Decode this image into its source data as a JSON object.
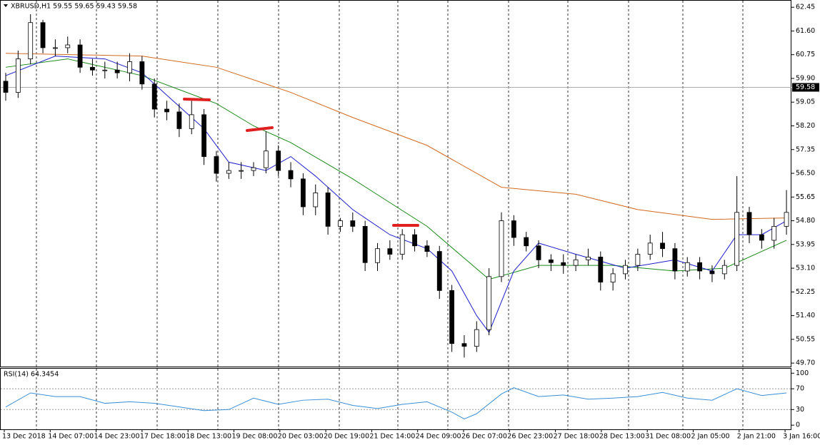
{
  "chart_data": [
    {
      "type": "candlestick",
      "title": "XBRUSD,H1  59.55 59.65 59.43 59.58",
      "open": [
        59.8,
        59.4,
        60.6,
        61.9,
        61.0,
        61.0,
        61.1,
        60.3,
        60.2,
        60.2,
        60.1,
        60.5,
        59.7,
        58.8,
        58.7,
        58.1,
        58.6,
        57.1,
        56.5,
        56.6,
        56.6,
        56.7,
        57.3,
        56.6,
        56.3,
        55.3,
        55.8,
        54.6,
        54.8,
        54.6,
        53.3,
        53.8,
        53.6,
        54.3,
        53.9,
        53.7,
        52.3,
        50.4,
        50.3,
        50.9,
        52.8,
        54.8,
        54.2,
        53.9,
        53.4,
        53.3,
        53.2,
        53.4,
        53.5,
        52.6,
        52.9,
        53.2,
        53.6,
        54.0,
        53.8,
        53.0,
        53.3,
        53.0,
        52.9,
        53.2,
        55.1,
        54.3,
        54.1,
        54.6
      ],
      "high": [
        60.1,
        60.9,
        62.2,
        62.0,
        61.3,
        61.4,
        61.3,
        60.6,
        60.5,
        60.5,
        60.8,
        60.7,
        59.9,
        59.1,
        59.0,
        59.1,
        58.8,
        57.3,
        56.9,
        56.9,
        56.9,
        58.0,
        57.5,
        56.9,
        56.5,
        56.1,
        56.0,
        54.9,
        55.1,
        54.8,
        54.0,
        54.1,
        54.5,
        54.5,
        54.1,
        53.9,
        52.5,
        50.7,
        51.2,
        53.1,
        55.1,
        55.0,
        54.4,
        54.1,
        53.6,
        53.6,
        53.6,
        53.8,
        53.7,
        53.1,
        53.4,
        53.8,
        54.3,
        54.4,
        54.0,
        53.5,
        53.5,
        53.2,
        53.4,
        56.4,
        55.3,
        54.5,
        54.9,
        55.9
      ],
      "low": [
        59.1,
        59.2,
        60.4,
        60.8,
        60.7,
        60.8,
        60.1,
        60.0,
        59.9,
        59.9,
        59.8,
        59.5,
        58.5,
        58.4,
        57.8,
        57.9,
        56.8,
        56.2,
        56.3,
        56.3,
        56.4,
        56.5,
        56.4,
        56.0,
        55.0,
        55.0,
        54.3,
        54.4,
        54.4,
        53.0,
        53.0,
        53.4,
        53.4,
        53.7,
        53.5,
        52.0,
        50.1,
        49.9,
        50.1,
        50.7,
        52.6,
        53.9,
        53.7,
        53.1,
        53.0,
        52.9,
        53.0,
        53.2,
        52.3,
        52.3,
        52.7,
        53.0,
        53.4,
        53.5,
        52.7,
        52.8,
        52.7,
        52.6,
        52.7,
        53.0,
        54.0,
        53.8,
        53.8,
        54.3
      ],
      "close": [
        59.4,
        60.6,
        61.9,
        61.0,
        61.0,
        61.1,
        60.3,
        60.2,
        60.2,
        60.1,
        60.5,
        59.7,
        58.8,
        58.7,
        58.1,
        58.6,
        57.1,
        56.5,
        56.6,
        56.6,
        56.7,
        57.3,
        56.6,
        56.3,
        55.3,
        55.8,
        54.6,
        54.8,
        54.6,
        53.3,
        53.8,
        53.6,
        54.3,
        53.9,
        53.7,
        52.3,
        50.4,
        50.3,
        50.9,
        52.8,
        54.8,
        54.2,
        53.9,
        53.4,
        53.3,
        53.2,
        53.4,
        53.5,
        52.6,
        52.9,
        53.2,
        53.6,
        54.0,
        53.8,
        53.0,
        53.3,
        53.0,
        52.9,
        53.2,
        55.1,
        54.3,
        54.1,
        54.6,
        55.1
      ],
      "series": [
        {
          "color": "#d2691e",
          "x": [
            0,
            11,
            17,
            23,
            28,
            34,
            40,
            46,
            51,
            57,
            63
          ],
          "values": [
            60.8,
            60.7,
            60.3,
            59.4,
            58.5,
            57.5,
            56.0,
            55.75,
            55.2,
            54.85,
            54.9
          ]
        },
        {
          "color": "#1a8a1a",
          "x": [
            0,
            5,
            11,
            17,
            20,
            23,
            28,
            34,
            39,
            43,
            49,
            54,
            58,
            63
          ],
          "values": [
            60.3,
            60.6,
            60.0,
            59.0,
            58.2,
            57.6,
            56.3,
            54.6,
            52.7,
            53.2,
            53.2,
            53.0,
            53.1,
            54.1
          ]
        },
        {
          "color": "#1c1ccc",
          "x": [
            0,
            4,
            8,
            11,
            13,
            16,
            18,
            21,
            23,
            25,
            28,
            31,
            34,
            36,
            38,
            39,
            41,
            43,
            46,
            50,
            54,
            57,
            59,
            61,
            63
          ],
          "values": [
            60.0,
            60.7,
            60.6,
            60.1,
            59.3,
            58.1,
            56.9,
            56.6,
            57.1,
            56.4,
            55.2,
            54.3,
            53.8,
            53.0,
            51.4,
            50.8,
            53.0,
            54.0,
            53.6,
            53.1,
            53.4,
            53.0,
            54.3,
            54.3,
            54.8
          ]
        }
      ],
      "current_price": {
        "value": 59.58,
        "label": "59.58"
      },
      "ylim": [
        49.55,
        62.71
      ],
      "yticks": [
        62.45,
        {
          "value": 61.6,
          "label": "61.60"
        },
        60.75,
        {
          "value": 59.9,
          "label": "59.90"
        },
        59.05,
        {
          "value": 58.2,
          "label": "58.20"
        },
        57.35,
        {
          "value": 56.5,
          "label": "56.50"
        },
        55.65,
        {
          "value": 54.8,
          "label": "54.80"
        },
        53.95,
        {
          "value": 53.1,
          "label": "53.10"
        },
        52.25,
        {
          "value": 51.4,
          "label": "51.40"
        },
        50.55,
        {
          "value": 49.7,
          "label": "49.70"
        }
      ],
      "x_labels": [
        "13 Dec 2018",
        "14 Dec 07:00",
        "14 Dec 23:00",
        "17 Dec 18:00",
        "18 Dec 13:00",
        "19 Dec 08:00",
        "20 Dec 03:00",
        "20 Dec 19:00",
        "21 Dec 14:00",
        "24 Dec 09:00",
        "26 Dec 07:00",
        "26 Dec 23:00",
        "27 Dec 18:00",
        "28 Dec 13:00",
        "31 Dec 08:00",
        "2 Jan 05:00",
        "2 Jan 21:00",
        "3 Jan 16:00"
      ]
    },
    {
      "type": "line",
      "title": "RSI(14) 64.3454",
      "color": "#3a8fd6",
      "x": [
        0,
        2,
        4,
        6,
        8,
        10,
        12,
        14,
        16,
        18,
        20,
        22,
        24,
        26,
        28,
        30,
        32,
        34,
        36,
        37,
        38,
        40,
        41,
        43,
        45,
        47,
        49,
        51,
        53,
        55,
        57,
        59,
        61,
        63
      ],
      "values": [
        35,
        62,
        55,
        55,
        42,
        45,
        42,
        35,
        28,
        30,
        52,
        40,
        48,
        50,
        38,
        32,
        40,
        45,
        25,
        12,
        22,
        60,
        72,
        55,
        58,
        50,
        52,
        55,
        63,
        52,
        48,
        70,
        57,
        62
      ],
      "ylim": [
        -8,
        110
      ],
      "yticks": [
        100,
        70,
        30,
        0
      ],
      "dotted_levels": [
        70,
        30
      ]
    }
  ]
}
